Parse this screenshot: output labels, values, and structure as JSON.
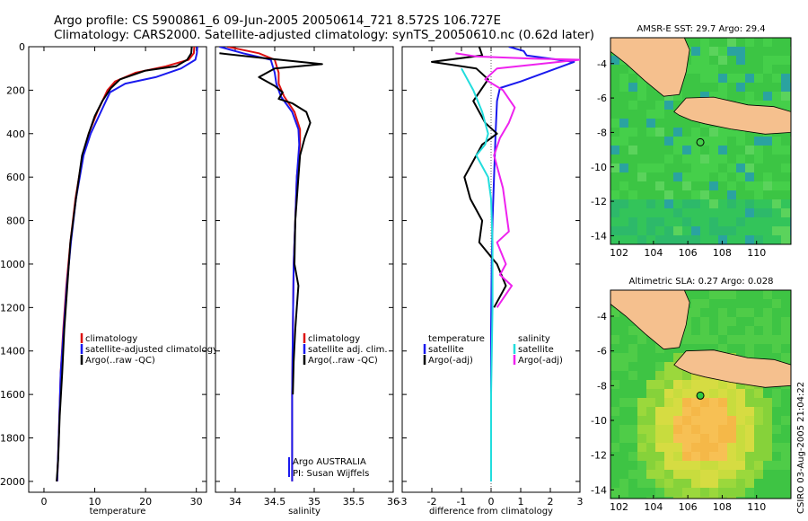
{
  "title_line1": "Argo profile: CS 5900861_6 09-Jun-2005 20050614_721 8.572S 106.727E",
  "title_line2": "Climatology: CARS2000. Satellite-adjusted climatology: synTS_20050610.nc (0.62d later)",
  "stamp": "CSIRO 03-Aug-2005 21:04:22",
  "colors": {
    "climatology": "#dd1111",
    "satellite": "#1a1aee",
    "argo": "#000000",
    "salinity_diff": "#ee22ee",
    "salinity_sat": "#22dddd",
    "land": "#f5c08e",
    "ocean": "#3ad14a"
  },
  "chart_data": [
    {
      "type": "line",
      "xlabel": "temperature",
      "xlim": [
        -3,
        32
      ],
      "ylim": [
        2050,
        0
      ],
      "xticks": [
        0,
        10,
        20,
        30
      ],
      "yticks": [
        0,
        200,
        400,
        600,
        800,
        1000,
        1200,
        1400,
        1600,
        1800,
        2000
      ],
      "legend": [
        "climatology",
        "satellite-adjusted climatology",
        "Argo(..raw -QC)"
      ],
      "series": [
        {
          "name": "climatology",
          "color": "#dd1111",
          "x": [
            29.6,
            29.5,
            28.5,
            24,
            18,
            14,
            12.5,
            10.5,
            8.8,
            7.6,
            6.2,
            5.2,
            4.4,
            3.8,
            3.3,
            2.9,
            2.6
          ],
          "y": [
            0,
            30,
            60,
            90,
            120,
            160,
            200,
            300,
            400,
            500,
            700,
            900,
            1100,
            1300,
            1500,
            1800,
            2000
          ]
        },
        {
          "name": "satellite-adjusted climatology",
          "color": "#1a1aee",
          "x": [
            30.2,
            30.1,
            29.8,
            27,
            22,
            16,
            13,
            11.2,
            9.2,
            7.8,
            6.3,
            5.3,
            4.5,
            3.9,
            3.3,
            2.9,
            2.6
          ],
          "y": [
            0,
            30,
            60,
            100,
            140,
            170,
            210,
            300,
            400,
            500,
            700,
            900,
            1100,
            1300,
            1500,
            1800,
            2000
          ]
        },
        {
          "name": "Argo(..raw -QC)",
          "color": "#000000",
          "x": [
            29.1,
            29.0,
            28.2,
            26,
            20,
            15,
            13.2,
            11.5,
            10,
            8.8,
            7.5,
            6.3,
            5.2,
            4.6,
            4.0,
            3.6,
            3.1,
            2.8,
            2.5
          ],
          "y": [
            0,
            30,
            60,
            90,
            110,
            150,
            190,
            250,
            320,
            400,
            500,
            700,
            900,
            1100,
            1300,
            1500,
            1700,
            1900,
            2000
          ]
        }
      ]
    },
    {
      "type": "line",
      "xlabel": "salinity",
      "xlim": [
        33.75,
        36.0
      ],
      "ylim": [
        2050,
        0
      ],
      "xticks": [
        34,
        34.5,
        35,
        35.5,
        36
      ],
      "legend": [
        "climatology",
        "satellite adj. clim.",
        "Argo(..raw -QC)"
      ],
      "annotations": [
        "Argo AUSTRALIA",
        "PI: Susan Wijffels"
      ],
      "series": [
        {
          "name": "climatology",
          "color": "#dd1111",
          "x": [
            33.9,
            34.3,
            34.5,
            34.55,
            34.55,
            34.62,
            34.75,
            34.82,
            34.82,
            34.78,
            34.76,
            34.74,
            34.73,
            34.72,
            34.72
          ],
          "y": [
            0,
            30,
            60,
            120,
            170,
            230,
            300,
            380,
            450,
            600,
            800,
            1000,
            1300,
            1600,
            2000
          ]
        },
        {
          "name": "satellite adj. clim.",
          "color": "#1a1aee",
          "x": [
            33.8,
            34.1,
            34.45,
            34.5,
            34.52,
            34.58,
            34.72,
            34.8,
            34.81,
            34.78,
            34.76,
            34.74,
            34.73,
            34.72,
            34.72
          ],
          "y": [
            0,
            30,
            60,
            120,
            170,
            230,
            300,
            380,
            450,
            600,
            800,
            1000,
            1300,
            1600,
            2000
          ]
        },
        {
          "name": "Argo(..raw -QC)",
          "color": "#000000",
          "x": [
            33.8,
            34.3,
            35.1,
            34.5,
            34.3,
            34.5,
            34.6,
            34.55,
            34.72,
            34.9,
            34.95,
            34.88,
            34.82,
            34.8,
            34.76,
            34.75,
            34.8,
            34.78,
            34.76,
            34.74,
            34.73
          ],
          "y": [
            30,
            50,
            80,
            100,
            140,
            180,
            210,
            240,
            260,
            300,
            350,
            420,
            500,
            600,
            800,
            1000,
            1100,
            1200,
            1300,
            1450,
            1600
          ]
        }
      ]
    },
    {
      "type": "line",
      "xlabel": "difference from climatology",
      "xlim": [
        -3,
        3
      ],
      "ylim": [
        2050,
        0
      ],
      "xticks": [
        -3,
        -2,
        -1,
        0,
        1,
        2,
        3
      ],
      "legend_left": [
        "temperature",
        "satellite",
        "Argo(-adj)"
      ],
      "legend_right": [
        "salinity",
        "satellite",
        "Argo(-adj)"
      ],
      "series": [
        {
          "name": "satellite",
          "color": "#1a1aee",
          "x": [
            0.6,
            1.1,
            1.2,
            2.8,
            1.0,
            0.3,
            0.2,
            0.15,
            0.1,
            0.05,
            0.02,
            0,
            0,
            0
          ],
          "y": [
            0,
            20,
            40,
            70,
            160,
            190,
            250,
            400,
            600,
            800,
            1000,
            1300,
            1600,
            2000
          ]
        },
        {
          "name": "Argo(-adj)",
          "color": "#000000",
          "x": [
            -0.4,
            -0.3,
            -2.0,
            -0.5,
            -0.1,
            -0.6,
            -0.2,
            0.2,
            -0.3,
            -0.5,
            -0.9,
            -0.7,
            -0.3,
            -0.4,
            0.2,
            0.5,
            0.1
          ],
          "y": [
            0,
            40,
            70,
            100,
            150,
            250,
            350,
            400,
            450,
            500,
            600,
            700,
            800,
            900,
            1000,
            1100,
            1200
          ]
        },
        {
          "name": "satellite",
          "color": "#22dddd",
          "x": [
            -1.0,
            -0.6,
            -0.3,
            -0.1,
            -0.2,
            -0.5,
            -0.3,
            -0.1,
            0,
            0.05,
            0.05,
            0,
            0
          ],
          "y": [
            100,
            200,
            300,
            400,
            450,
            500,
            550,
            600,
            700,
            900,
            1200,
            1600,
            2000
          ]
        },
        {
          "name": "Argo(-adj)",
          "color": "#ee22ee",
          "x": [
            -1.2,
            -0.5,
            1.4,
            3.0,
            0.2,
            -0.2,
            0.4,
            0.8,
            0.6,
            0.3,
            0.1,
            0.4,
            0.6,
            0.2,
            0.5,
            0.3,
            0.7,
            0.2
          ],
          "y": [
            30,
            45,
            55,
            60,
            100,
            150,
            200,
            280,
            350,
            420,
            500,
            650,
            850,
            900,
            1000,
            1050,
            1100,
            1200
          ]
        }
      ]
    },
    {
      "type": "heatmap",
      "title": "AMSR-E SST: 29.7 Argo: 29.4",
      "xticks": [
        102,
        104,
        106,
        108,
        110
      ],
      "yticks": [
        -4,
        -6,
        -8,
        -10,
        -12,
        -14
      ],
      "xlim": [
        101.5,
        112
      ],
      "ylim": [
        -14.5,
        -2.5
      ],
      "marker": {
        "lon": 106.727,
        "lat": -8.572
      }
    },
    {
      "type": "heatmap",
      "title": "Altimetric SLA: 0.27 Argo: 0.028",
      "xticks": [
        102,
        104,
        106,
        108,
        110
      ],
      "yticks": [
        -4,
        -6,
        -8,
        -10,
        -12,
        -14
      ],
      "xlim": [
        101.5,
        112
      ],
      "ylim": [
        -14.5,
        -2.5
      ],
      "marker": {
        "lon": 106.727,
        "lat": -8.572
      }
    }
  ]
}
